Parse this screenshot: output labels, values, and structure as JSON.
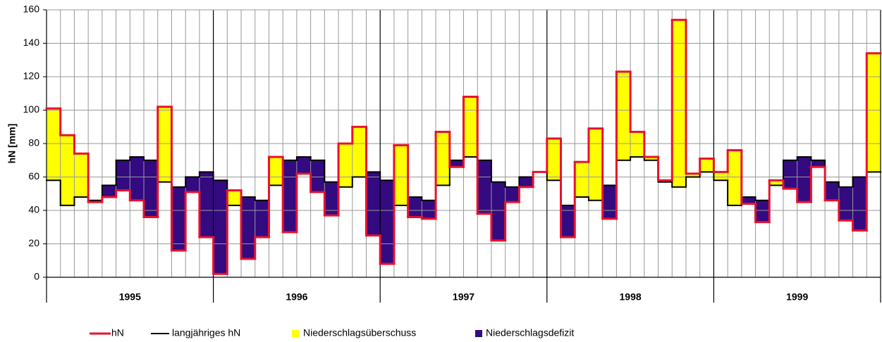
{
  "chart_data": {
    "type": "step",
    "ylabel": "hN  [mm]",
    "groups": [
      "1995",
      "1996",
      "1997",
      "1998",
      "1999"
    ],
    "periods_per_group": 12,
    "ylim": [
      0,
      160
    ],
    "yticks": [
      0,
      20,
      40,
      60,
      80,
      100,
      120,
      140,
      160
    ],
    "grid": true,
    "series": [
      {
        "name": "hN",
        "color": "#e8112d",
        "values": [
          101,
          85,
          74,
          45,
          48,
          52,
          46,
          36,
          102,
          16,
          51,
          24,
          2,
          52,
          11,
          24,
          72,
          27,
          62,
          51,
          37,
          80,
          90,
          25,
          8,
          79,
          36,
          35,
          87,
          66,
          108,
          38,
          22,
          45,
          54,
          63,
          83,
          24,
          69,
          89,
          35,
          123,
          87,
          72,
          58,
          154,
          62,
          71,
          63,
          76,
          44,
          33,
          58,
          53,
          45,
          66,
          46,
          34,
          28,
          134
        ]
      },
      {
        "name": "langjähriges hN",
        "color": "#000000",
        "values": [
          58,
          43,
          48,
          46,
          55,
          70,
          72,
          70,
          57,
          54,
          60,
          63,
          58,
          43,
          48,
          46,
          55,
          70,
          72,
          70,
          57,
          54,
          60,
          63,
          58,
          43,
          48,
          46,
          55,
          70,
          72,
          70,
          57,
          54,
          60,
          63,
          58,
          43,
          48,
          46,
          55,
          70,
          72,
          70,
          57,
          54,
          60,
          63,
          58,
          43,
          48,
          46,
          55,
          70,
          72,
          70,
          57,
          54,
          60,
          63
        ]
      }
    ],
    "fills": [
      {
        "name": "Niederschlagsüberschuss",
        "color": "#ffff00"
      },
      {
        "name": "Niederschlagsdefizit",
        "color": "#330a80"
      }
    ]
  }
}
